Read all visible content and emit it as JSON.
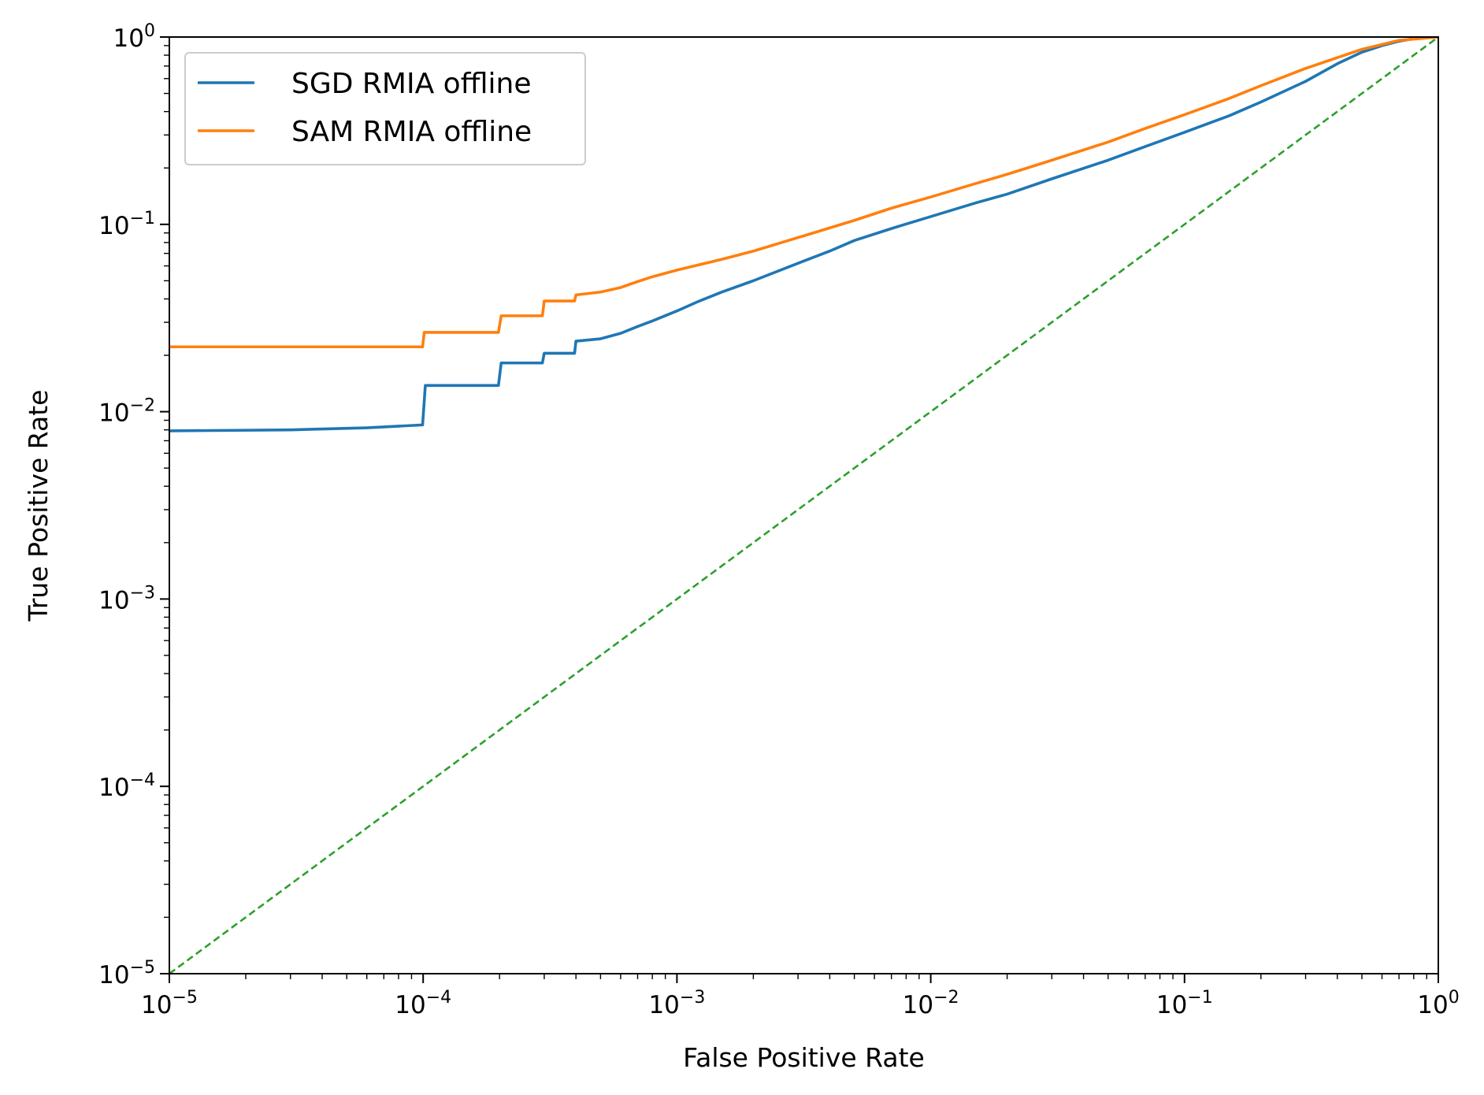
{
  "chart_data": {
    "type": "line",
    "title": "",
    "xlabel": "False Positive Rate",
    "ylabel": "True Positive Rate",
    "xscale": "log",
    "yscale": "log",
    "xlim": [
      1e-05,
      1
    ],
    "ylim": [
      1e-05,
      1
    ],
    "legend_position": "top-left",
    "x_ticks": [
      {
        "value": 1e-05,
        "base": "10",
        "exp": "−5"
      },
      {
        "value": 0.0001,
        "base": "10",
        "exp": "−4"
      },
      {
        "value": 0.001,
        "base": "10",
        "exp": "−3"
      },
      {
        "value": 0.01,
        "base": "10",
        "exp": "−2"
      },
      {
        "value": 0.1,
        "base": "10",
        "exp": "−1"
      },
      {
        "value": 1,
        "base": "10",
        "exp": "0"
      }
    ],
    "y_ticks": [
      {
        "value": 1e-05,
        "base": "10",
        "exp": "−5"
      },
      {
        "value": 0.0001,
        "base": "10",
        "exp": "−4"
      },
      {
        "value": 0.001,
        "base": "10",
        "exp": "−3"
      },
      {
        "value": 0.01,
        "base": "10",
        "exp": "−2"
      },
      {
        "value": 0.1,
        "base": "10",
        "exp": "−1"
      },
      {
        "value": 1,
        "base": "10",
        "exp": "0"
      }
    ],
    "series": [
      {
        "name": "SGD RMIA offline",
        "color": "#1f77b4",
        "dash": "solid",
        "points": [
          [
            1e-05,
            0.0079
          ],
          [
            3e-05,
            0.008
          ],
          [
            6e-05,
            0.0082
          ],
          [
            9.95e-05,
            0.0085
          ],
          [
            0.000102,
            0.0138
          ],
          [
            0.000198,
            0.0138
          ],
          [
            0.000203,
            0.0182
          ],
          [
            0.000295,
            0.0182
          ],
          [
            0.0003,
            0.0205
          ],
          [
            0.000395,
            0.0205
          ],
          [
            0.0004,
            0.0238
          ],
          [
            0.0005,
            0.0245
          ],
          [
            0.0006,
            0.0262
          ],
          [
            0.0007,
            0.0285
          ],
          [
            0.0008,
            0.0305
          ],
          [
            0.001,
            0.0345
          ],
          [
            0.0012,
            0.0385
          ],
          [
            0.0015,
            0.0435
          ],
          [
            0.002,
            0.05
          ],
          [
            0.003,
            0.062
          ],
          [
            0.004,
            0.072
          ],
          [
            0.005,
            0.082
          ],
          [
            0.007,
            0.095
          ],
          [
            0.01,
            0.11
          ],
          [
            0.015,
            0.13
          ],
          [
            0.02,
            0.145
          ],
          [
            0.03,
            0.175
          ],
          [
            0.05,
            0.22
          ],
          [
            0.07,
            0.26
          ],
          [
            0.1,
            0.31
          ],
          [
            0.15,
            0.38
          ],
          [
            0.2,
            0.45
          ],
          [
            0.3,
            0.58
          ],
          [
            0.4,
            0.72
          ],
          [
            0.5,
            0.83
          ],
          [
            0.6,
            0.9
          ],
          [
            0.7,
            0.95
          ],
          [
            0.8,
            0.98
          ],
          [
            1,
            1
          ]
        ]
      },
      {
        "name": "SAM RMIA offline",
        "color": "#ff7f0e",
        "dash": "solid",
        "points": [
          [
            1e-05,
            0.0222
          ],
          [
            9.95e-05,
            0.0222
          ],
          [
            0.000101,
            0.0265
          ],
          [
            0.000198,
            0.0265
          ],
          [
            0.000203,
            0.0325
          ],
          [
            0.000295,
            0.0325
          ],
          [
            0.0003,
            0.039
          ],
          [
            0.000395,
            0.039
          ],
          [
            0.0004,
            0.042
          ],
          [
            0.0005,
            0.0435
          ],
          [
            0.0006,
            0.046
          ],
          [
            0.0007,
            0.0495
          ],
          [
            0.0008,
            0.0525
          ],
          [
            0.001,
            0.057
          ],
          [
            0.0015,
            0.065
          ],
          [
            0.002,
            0.072
          ],
          [
            0.003,
            0.085
          ],
          [
            0.005,
            0.105
          ],
          [
            0.007,
            0.122
          ],
          [
            0.01,
            0.14
          ],
          [
            0.015,
            0.165
          ],
          [
            0.02,
            0.185
          ],
          [
            0.03,
            0.22
          ],
          [
            0.05,
            0.275
          ],
          [
            0.07,
            0.325
          ],
          [
            0.1,
            0.385
          ],
          [
            0.15,
            0.47
          ],
          [
            0.2,
            0.55
          ],
          [
            0.3,
            0.68
          ],
          [
            0.5,
            0.86
          ],
          [
            0.7,
            0.96
          ],
          [
            1,
            1
          ]
        ]
      },
      {
        "name": "",
        "color": "#2ca02c",
        "dash": "dashed",
        "points": [
          [
            1e-05,
            1e-05
          ],
          [
            1,
            1
          ]
        ]
      }
    ]
  }
}
